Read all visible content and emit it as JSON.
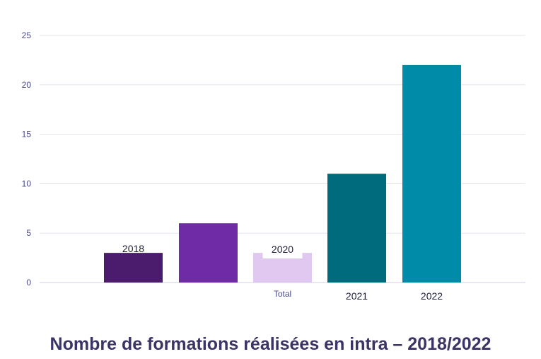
{
  "chart_data": {
    "type": "bar",
    "title": "Nombre de formations réalisées en intra – 2018/2022",
    "xlabel": "Total",
    "ylabel": "",
    "ylim": [
      0,
      25
    ],
    "yticks": [
      0,
      5,
      10,
      15,
      20,
      25
    ],
    "grid": true,
    "series": [
      {
        "name": "2018",
        "value": 3,
        "color": "#4b1c6e"
      },
      {
        "name": "",
        "value": 6,
        "color": "#6f2ba5"
      },
      {
        "name": "2020",
        "value": 3,
        "color": "#e0c8f0"
      },
      {
        "name": "2021",
        "value": 11,
        "color": "#006b7d"
      },
      {
        "name": "2022",
        "value": 22,
        "color": "#008ca8"
      }
    ]
  }
}
